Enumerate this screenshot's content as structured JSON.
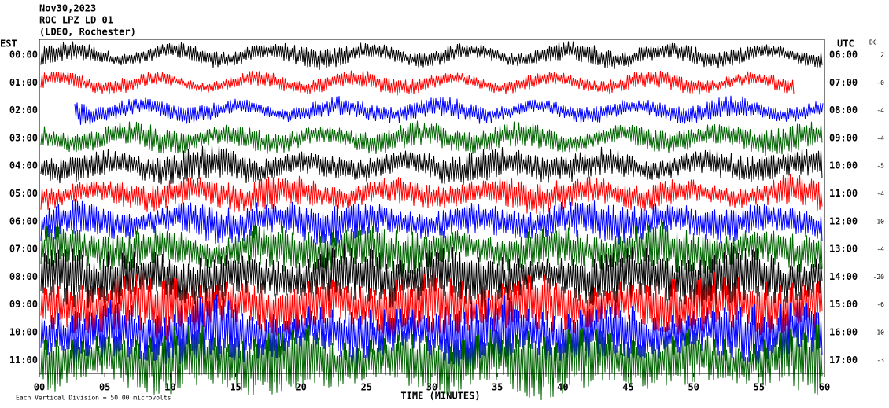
{
  "chart_data": {
    "type": "seismogram",
    "title_lines": [
      "Nov30,2023",
      "ROC LPZ LD 01",
      "(LDEO, Rochester)"
    ],
    "left_axis_label": "EST",
    "right_axis_label": "UTC",
    "offset_label": "DC",
    "rows": [
      "00:00",
      "01:00",
      "02:00",
      "03:00",
      "04:00",
      "05:00",
      "06:00",
      "07:00",
      "08:00",
      "09:00",
      "10:00",
      "11:00"
    ],
    "right_rows": [
      "06:00",
      "07:00",
      "08:00",
      "09:00",
      "10:00",
      "11:00",
      "12:00",
      "13:00",
      "14:00",
      "15:00",
      "16:00",
      "17:00"
    ],
    "offsets": [
      "2",
      "-0",
      "-4",
      "-4",
      "-5",
      "-4",
      "-10",
      "-4",
      "-20",
      "-6",
      "-10",
      "-3"
    ],
    "colors": [
      "#000000",
      "#ff0000",
      "#0000ff",
      "#006400"
    ],
    "xlabel": "TIME (MINUTES)",
    "xlim": [
      0,
      60
    ],
    "xticks": [
      {
        "value": 0,
        "label": "00"
      },
      {
        "value": 5,
        "label": "05"
      },
      10,
      15,
      20,
      25,
      30,
      35,
      40,
      45,
      50,
      55,
      60
    ],
    "footnote": "Each Vertical Division = 50.00 microvolts"
  }
}
